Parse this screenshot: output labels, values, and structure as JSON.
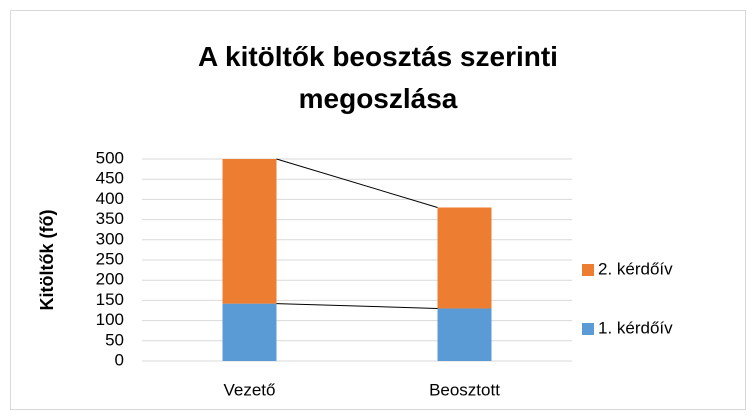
{
  "chart_data": {
    "type": "stacked_bar",
    "title": "A kitöltők beosztás szerinti megoszlása",
    "ylabel": "Kitöltők (fő)",
    "categories": [
      "Vezető",
      "Beosztott"
    ],
    "series": [
      {
        "name": "1. kérdőív",
        "color": "#5b9bd5",
        "values": [
          142,
          130
        ]
      },
      {
        "name": "2. kérdőív",
        "color": "#ed7d31",
        "values": [
          358,
          250
        ]
      }
    ],
    "ylim": [
      0,
      500
    ],
    "yticks": [
      0,
      50,
      100,
      150,
      200,
      250,
      300,
      350,
      400,
      450,
      500
    ],
    "grid": true,
    "legend": "right",
    "series_lines": true
  }
}
